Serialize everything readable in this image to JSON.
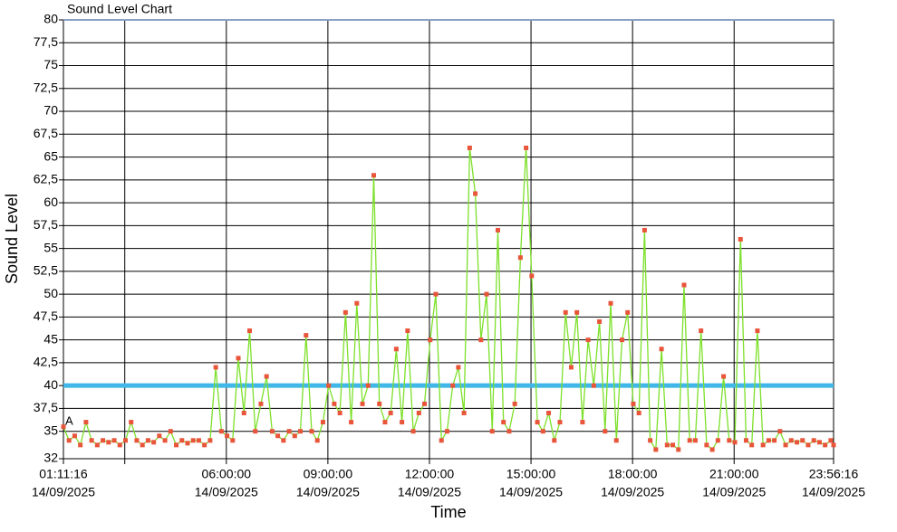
{
  "chart_data": {
    "type": "line",
    "title": "Sound Level Chart",
    "x_label": "Time",
    "y_label": "Sound Level",
    "annotation": "A",
    "threshold": 40,
    "threshold_color": "#3fb7e8",
    "x": [
      "01:11:16",
      "01:21:16",
      "01:31:16",
      "01:41:16",
      "01:51:16",
      "02:01:16",
      "02:11:16",
      "02:21:16",
      "02:31:16",
      "02:41:16",
      "02:51:16",
      "03:01:16",
      "03:11:16",
      "03:21:16",
      "03:31:16",
      "03:41:16",
      "03:51:16",
      "04:01:16",
      "04:11:16",
      "04:21:16",
      "04:31:16",
      "04:41:16",
      "04:51:16",
      "05:01:16",
      "05:11:16",
      "05:21:16",
      "05:31:16",
      "05:41:16",
      "05:51:16",
      "06:01:16",
      "06:11:16",
      "06:21:16",
      "06:31:16",
      "06:41:16",
      "06:51:16",
      "07:01:16",
      "07:11:16",
      "07:21:16",
      "07:31:16",
      "07:41:16",
      "07:51:16",
      "08:01:16",
      "08:11:16",
      "08:21:16",
      "08:31:16",
      "08:41:16",
      "08:51:16",
      "09:01:16",
      "09:11:16",
      "09:21:16",
      "09:31:16",
      "09:41:16",
      "09:51:16",
      "10:01:16",
      "10:11:16",
      "10:21:16",
      "10:31:16",
      "10:41:16",
      "10:51:16",
      "11:01:16",
      "11:11:16",
      "11:21:16",
      "11:31:16",
      "11:41:16",
      "11:51:16",
      "12:01:16",
      "12:11:16",
      "12:21:16",
      "12:31:16",
      "12:41:16",
      "12:51:16",
      "13:01:16",
      "13:11:16",
      "13:21:16",
      "13:31:16",
      "13:41:16",
      "13:51:16",
      "14:01:16",
      "14:11:16",
      "14:21:16",
      "14:31:16",
      "14:41:16",
      "14:51:16",
      "15:01:16",
      "15:11:16",
      "15:21:16",
      "15:31:16",
      "15:41:16",
      "15:51:16",
      "16:01:16",
      "16:11:16",
      "16:21:16",
      "16:31:16",
      "16:41:16",
      "16:51:16",
      "17:01:16",
      "17:11:16",
      "17:21:16",
      "17:31:16",
      "17:41:16",
      "17:51:16",
      "18:01:16",
      "18:11:16",
      "18:21:16",
      "18:31:16",
      "18:41:16",
      "18:51:16",
      "19:01:16",
      "19:11:16",
      "19:21:16",
      "19:31:16",
      "19:41:16",
      "19:51:16",
      "20:01:16",
      "20:11:16",
      "20:21:16",
      "20:31:16",
      "20:41:16",
      "20:51:16",
      "21:01:16",
      "21:11:16",
      "21:21:16",
      "21:31:16",
      "21:41:16",
      "21:51:16",
      "22:01:16",
      "22:11:16",
      "22:21:16",
      "22:31:16",
      "22:41:16",
      "22:51:16",
      "23:01:16",
      "23:11:16",
      "23:21:16",
      "23:31:16",
      "23:41:16",
      "23:51:16",
      "23:56:16"
    ],
    "series": [
      {
        "color": "#7de02a",
        "marker_color": "#e8553a",
        "values": [
          35.5,
          34,
          34.5,
          33.5,
          36,
          34,
          33.5,
          34,
          33.8,
          34,
          33.5,
          34,
          36,
          34,
          33.5,
          34,
          33.8,
          34.5,
          34,
          35,
          33.5,
          34,
          33.7,
          34,
          34,
          33.5,
          34,
          42,
          35,
          34.5,
          34,
          43,
          37,
          46,
          35,
          38,
          41,
          35,
          34.5,
          34,
          35,
          34.5,
          35,
          45.5,
          35,
          34,
          36,
          40,
          38,
          37,
          48,
          36,
          49,
          38,
          40,
          63,
          38,
          36,
          37,
          44,
          36,
          46,
          35,
          37,
          38,
          45,
          50,
          34,
          35,
          40,
          42,
          37,
          66,
          61,
          45,
          50,
          35,
          57,
          36,
          35,
          38,
          54,
          66,
          52,
          36,
          35,
          37,
          34,
          36,
          48,
          42,
          48,
          36,
          45,
          40,
          47,
          35,
          49,
          34,
          45,
          48,
          38,
          37,
          57,
          34,
          33,
          44,
          33.5,
          33.5,
          33,
          51,
          34,
          34,
          46,
          33.5,
          33,
          34,
          41,
          34,
          33.8,
          56,
          34,
          33.5,
          46,
          33.5,
          34,
          34,
          35,
          33.5,
          34,
          33.8,
          34,
          33.5,
          34,
          33.8,
          33.5,
          34,
          33.5
        ]
      }
    ],
    "xlim": [
      "01:11:16",
      "23:56:16"
    ],
    "xticks": [
      {
        "value": "01:11:16",
        "label": [
          "01:11:16",
          "14/09/2025"
        ]
      },
      {
        "value": "03:00:00",
        "label": null
      },
      {
        "value": "06:00:00",
        "label": [
          "06:00:00",
          "14/09/2025"
        ]
      },
      {
        "value": "09:00:00",
        "label": [
          "09:00:00",
          "14/09/2025"
        ]
      },
      {
        "value": "12:00:00",
        "label": [
          "12:00:00",
          "14/09/2025"
        ]
      },
      {
        "value": "15:00:00",
        "label": [
          "15:00:00",
          "14/09/2025"
        ]
      },
      {
        "value": "18:00:00",
        "label": [
          "18:00:00",
          "14/09/2025"
        ]
      },
      {
        "value": "21:00:00",
        "label": [
          "21:00:00",
          "14/09/2025"
        ]
      },
      {
        "value": "23:56:16",
        "label": [
          "23:56:16",
          "14/09/2025"
        ]
      }
    ],
    "ylim": [
      32,
      80
    ],
    "yticks": [
      32,
      35,
      {
        "value": 37.5,
        "label": "37,5"
      },
      40,
      {
        "value": 42.5,
        "label": "42,5"
      },
      45,
      {
        "value": 47.5,
        "label": "47,5"
      },
      50,
      {
        "value": 52.5,
        "label": "52,5"
      },
      55,
      {
        "value": 57.5,
        "label": "57,5"
      },
      60,
      {
        "value": 62.5,
        "label": "62,5"
      },
      65,
      {
        "value": 67.5,
        "label": "67,5"
      },
      70,
      {
        "value": 72.5,
        "label": "72,5"
      },
      75,
      {
        "value": 77.5,
        "label": "77,5"
      },
      80
    ],
    "grid": true
  }
}
